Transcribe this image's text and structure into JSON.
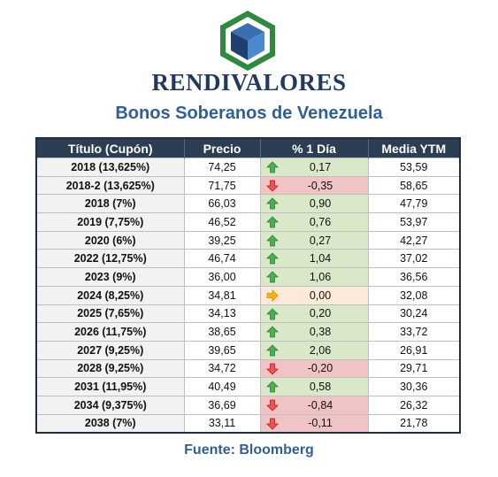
{
  "brand": {
    "name": "RENDIVALORES"
  },
  "report": {
    "title": "Bonos Soberanos de Venezuela",
    "source": "Fuente: Bloomberg"
  },
  "colors": {
    "header_bg": "#2b3e54",
    "up": "#3a8a3a",
    "down": "#c0392b",
    "flat": "#e8a23a",
    "title": "#2e5f9a"
  },
  "table": {
    "headers": [
      "Título (Cupón)",
      "Precio",
      "% 1 Día",
      "Media YTM"
    ],
    "rows": [
      {
        "title": "2018 (13,625%)",
        "price": "74,25",
        "change": "0,17",
        "trend": "up",
        "ytm": "53,59"
      },
      {
        "title": "2018-2 (13,625%)",
        "price": "71,75",
        "change": "-0,35",
        "trend": "down",
        "ytm": "58,65"
      },
      {
        "title": "2018 (7%)",
        "price": "66,03",
        "change": "0,90",
        "trend": "up",
        "ytm": "47,79"
      },
      {
        "title": "2019 (7,75%)",
        "price": "46,52",
        "change": "0,76",
        "trend": "up",
        "ytm": "53,97"
      },
      {
        "title": "2020 (6%)",
        "price": "39,25",
        "change": "0,27",
        "trend": "up",
        "ytm": "42,27"
      },
      {
        "title": "2022 (12,75%)",
        "price": "46,74",
        "change": "1,04",
        "trend": "up",
        "ytm": "37,02"
      },
      {
        "title": "2023 (9%)",
        "price": "36,00",
        "change": "1,06",
        "trend": "up",
        "ytm": "36,56"
      },
      {
        "title": "2024 (8,25%)",
        "price": "34,81",
        "change": "0,00",
        "trend": "flat",
        "ytm": "32,08"
      },
      {
        "title": "2025 (7,65%)",
        "price": "34,13",
        "change": "0,20",
        "trend": "up",
        "ytm": "30,24"
      },
      {
        "title": "2026 (11,75%)",
        "price": "38,65",
        "change": "0,38",
        "trend": "up",
        "ytm": "33,72"
      },
      {
        "title": "2027 (9,25%)",
        "price": "39,65",
        "change": "2,06",
        "trend": "up",
        "ytm": "26,91"
      },
      {
        "title": "2028 (9,25%)",
        "price": "34,72",
        "change": "-0,20",
        "trend": "down",
        "ytm": "29,71"
      },
      {
        "title": "2031 (11,95%)",
        "price": "40,49",
        "change": "0,58",
        "trend": "up",
        "ytm": "30,36"
      },
      {
        "title": "2034 (9,375%)",
        "price": "36,69",
        "change": "-0,84",
        "trend": "down",
        "ytm": "26,32"
      },
      {
        "title": "2038 (7%)",
        "price": "33,11",
        "change": "-0,11",
        "trend": "down",
        "ytm": "21,78"
      }
    ]
  },
  "icons": {
    "up": "arrow-up-icon",
    "down": "arrow-down-icon",
    "flat": "arrow-right-icon",
    "logo": "cube-logo-icon"
  }
}
